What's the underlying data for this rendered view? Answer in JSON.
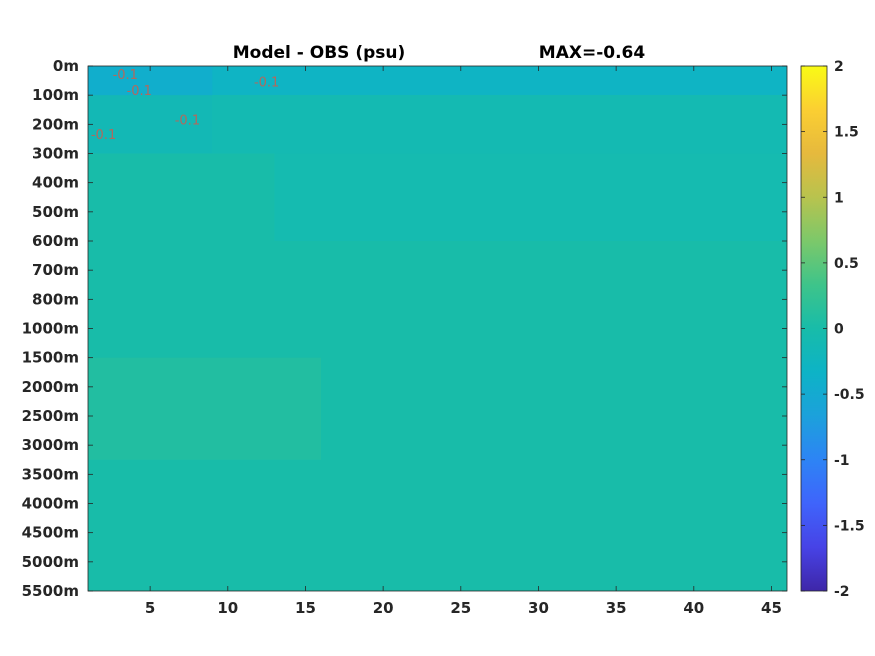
{
  "chart_data": {
    "type": "heatmap",
    "title": "Model - OBS (psu)",
    "subtitle": "MAX=-0.64",
    "xlabel": "",
    "ylabel": "",
    "x_range": [
      1,
      46
    ],
    "x_ticks": [
      5,
      10,
      15,
      20,
      25,
      30,
      35,
      40,
      45
    ],
    "x_tick_labels": [
      "5",
      "10",
      "15",
      "20",
      "25",
      "30",
      "35",
      "40",
      "45"
    ],
    "y_tick_labels": [
      "0m",
      "100m",
      "200m",
      "300m",
      "400m",
      "500m",
      "600m",
      "700m",
      "800m",
      "1000m",
      "1500m",
      "2000m",
      "2500m",
      "3000m",
      "3500m",
      "4000m",
      "4500m",
      "5000m",
      "5500m"
    ],
    "clim": [
      -2,
      2
    ],
    "colorbar_ticks": [
      2,
      1.5,
      1,
      0.5,
      0,
      -0.5,
      -1,
      -1.5,
      -2
    ],
    "colorbar_tick_labels": [
      "2",
      "1.5",
      "1",
      "0.5",
      "0",
      "-0.5",
      "-1",
      "-1.5",
      "-2"
    ],
    "colormap": "parula",
    "colormap_colors": [
      "#3e26a8",
      "#4743e6",
      "#3f64fb",
      "#2d84f5",
      "#1ca1db",
      "#0db3c6",
      "#18bca9",
      "#3ec48a",
      "#7cc86a",
      "#b8c34e",
      "#e6b93d",
      "#fbcf32",
      "#f9fb15"
    ],
    "background_value": 0.0,
    "regions": [
      {
        "x_from": 1,
        "x_to": 46,
        "y_from": 0,
        "y_to": 1,
        "value": -0.35
      },
      {
        "x_from": 1,
        "x_to": 9,
        "y_from": 0,
        "y_to": 3,
        "value": -0.45
      },
      {
        "x_from": 1,
        "x_to": 46,
        "y_from": 1,
        "y_to": 3,
        "value": -0.12
      },
      {
        "x_from": 13,
        "x_to": 46,
        "y_from": 3,
        "y_to": 6,
        "value": -0.08
      },
      {
        "x_from": 1,
        "x_to": 16,
        "y_from": 10,
        "y_to": 13.5,
        "value": 0.1
      }
    ],
    "contour_labels": [
      {
        "x": 3.4,
        "y": 0.45,
        "text": "-0.1"
      },
      {
        "x": 4.3,
        "y": 1.0,
        "text": "-0.1"
      },
      {
        "x": 12.5,
        "y": 0.7,
        "text": "-0.1"
      },
      {
        "x": 2.0,
        "y": 2.5,
        "text": "-0.1"
      },
      {
        "x": 7.4,
        "y": 2.0,
        "text": "-0.1"
      }
    ]
  }
}
